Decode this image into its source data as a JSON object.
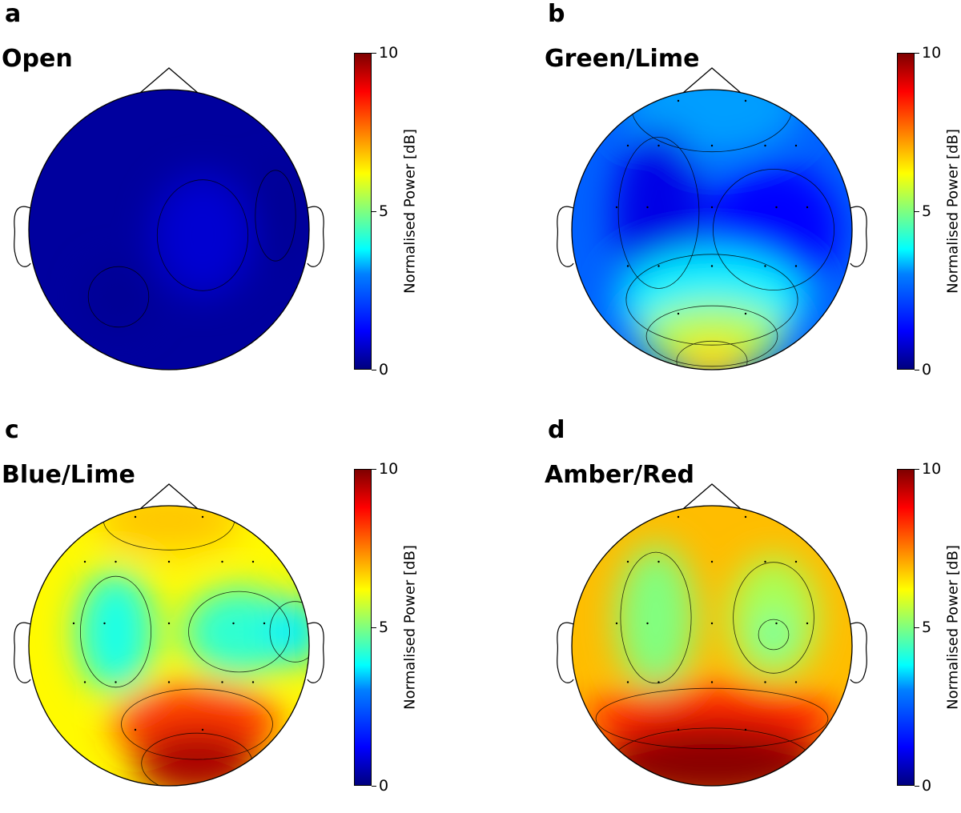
{
  "chart_data": [
    {
      "type": "heatmap",
      "panel_letter": "a",
      "title": "Open",
      "colorbar": {
        "label": "Normalised Power [dB]",
        "ticks": [
          0,
          5,
          10
        ],
        "range": [
          0,
          10
        ],
        "colormap": "jet"
      },
      "show_sensors": false,
      "background_value": 0.3,
      "regions": [
        {
          "x": 0.62,
          "y": 0.52,
          "rx": 0.18,
          "ry": 0.22,
          "value": 0.8
        },
        {
          "x": 0.32,
          "y": 0.74,
          "rx": 0.12,
          "ry": 0.12,
          "value": 0.2
        },
        {
          "x": 0.88,
          "y": 0.45,
          "rx": 0.08,
          "ry": 0.18,
          "value": 0.2
        }
      ]
    },
    {
      "type": "heatmap",
      "panel_letter": "b",
      "title": "Green/Lime",
      "colorbar": {
        "label": "Normalised Power [dB]",
        "ticks": [
          0,
          5,
          10
        ],
        "range": [
          0,
          10
        ],
        "colormap": "jet"
      },
      "show_sensors": true,
      "background_value": 2.2,
      "regions": [
        {
          "x": 0.5,
          "y": 0.06,
          "rx": 0.32,
          "ry": 0.18,
          "value": 2.8
        },
        {
          "x": 0.31,
          "y": 0.44,
          "rx": 0.16,
          "ry": 0.3,
          "value": 1.0
        },
        {
          "x": 0.72,
          "y": 0.5,
          "rx": 0.24,
          "ry": 0.24,
          "value": 1.3
        },
        {
          "x": 0.5,
          "y": 0.75,
          "rx": 0.34,
          "ry": 0.18,
          "value": 3.6
        },
        {
          "x": 0.5,
          "y": 0.88,
          "rx": 0.26,
          "ry": 0.12,
          "value": 5.5
        },
        {
          "x": 0.5,
          "y": 0.97,
          "rx": 0.14,
          "ry": 0.08,
          "value": 6.6
        }
      ]
    },
    {
      "type": "heatmap",
      "panel_letter": "c",
      "title": "Blue/Lime",
      "colorbar": {
        "label": "Normalised Power [dB]",
        "ticks": [
          0,
          5,
          10
        ],
        "range": [
          0,
          10
        ],
        "colormap": "jet"
      },
      "show_sensors": true,
      "background_value": 6.3,
      "regions": [
        {
          "x": 0.5,
          "y": 0.05,
          "rx": 0.26,
          "ry": 0.12,
          "value": 6.8
        },
        {
          "x": 0.31,
          "y": 0.45,
          "rx": 0.14,
          "ry": 0.22,
          "value": 4.0
        },
        {
          "x": 0.75,
          "y": 0.45,
          "rx": 0.2,
          "ry": 0.16,
          "value": 4.2
        },
        {
          "x": 0.95,
          "y": 0.45,
          "rx": 0.1,
          "ry": 0.12,
          "value": 3.6
        },
        {
          "x": 0.6,
          "y": 0.78,
          "rx": 0.3,
          "ry": 0.14,
          "value": 8.2
        },
        {
          "x": 0.6,
          "y": 0.92,
          "rx": 0.22,
          "ry": 0.12,
          "value": 9.6
        }
      ]
    },
    {
      "type": "heatmap",
      "panel_letter": "d",
      "title": "Amber/Red",
      "colorbar": {
        "label": "Normalised Power [dB]",
        "ticks": [
          0,
          5,
          10
        ],
        "range": [
          0,
          10
        ],
        "colormap": "jet"
      },
      "show_sensors": true,
      "background_value": 6.9,
      "regions": [
        {
          "x": 0.3,
          "y": 0.4,
          "rx": 0.14,
          "ry": 0.26,
          "value": 5.0
        },
        {
          "x": 0.72,
          "y": 0.4,
          "rx": 0.16,
          "ry": 0.22,
          "value": 5.4
        },
        {
          "x": 0.72,
          "y": 0.46,
          "rx": 0.06,
          "ry": 0.06,
          "value": 4.4
        },
        {
          "x": 0.5,
          "y": 0.76,
          "rx": 0.46,
          "ry": 0.12,
          "value": 8.4
        },
        {
          "x": 0.5,
          "y": 0.92,
          "rx": 0.4,
          "ry": 0.14,
          "value": 9.9
        }
      ]
    }
  ]
}
